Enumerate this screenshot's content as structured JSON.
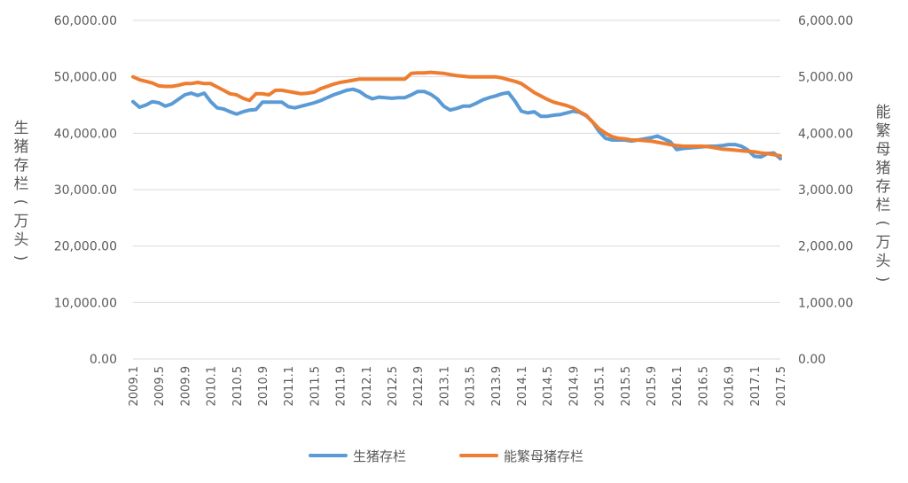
{
  "chart_data": {
    "type": "line",
    "title": "",
    "grid": true,
    "legend_position": "bottom",
    "x_labels": [
      "2009.1",
      "2009.5",
      "2009.9",
      "2010.1",
      "2010.5",
      "2010.9",
      "2011.1",
      "2011.5",
      "2011.9",
      "2012.1",
      "2012.5",
      "2012.9",
      "2013.1",
      "2013.5",
      "2013.9",
      "2014.1",
      "2014.5",
      "2014.9",
      "2015.1",
      "2015.5",
      "2015.9",
      "2016.1",
      "2016.5",
      "2016.9",
      "2017.1",
      "2017.5"
    ],
    "y_left": {
      "label": "生猪存栏(万头)",
      "range": [
        0,
        60000
      ],
      "ticks": [
        0,
        10000,
        20000,
        30000,
        40000,
        50000,
        60000
      ],
      "tick_labels": [
        "0.00",
        "10,000.00",
        "20,000.00",
        "30,000.00",
        "40,000.00",
        "50,000.00",
        "60,000.00"
      ]
    },
    "y_right": {
      "label": "能繁母猪存栏(万头)",
      "range": [
        0,
        6000
      ],
      "ticks": [
        0,
        1000,
        2000,
        3000,
        4000,
        5000,
        6000
      ],
      "tick_labels": [
        "0.00",
        "1,000.00",
        "2,000.00",
        "3,000.00",
        "4,000.00",
        "5,000.00",
        "6,000.00"
      ]
    },
    "series": [
      {
        "name": "生猪存栏",
        "axis": "left",
        "color": "#5B9BD5",
        "x": [
          "2009.1",
          "2009.2",
          "2009.3",
          "2009.4",
          "2009.5",
          "2009.6",
          "2009.7",
          "2009.8",
          "2009.9",
          "2009.10",
          "2009.11",
          "2009.12",
          "2010.1",
          "2010.2",
          "2010.3",
          "2010.4",
          "2010.5",
          "2010.6",
          "2010.7",
          "2010.8",
          "2010.9",
          "2010.10",
          "2010.11",
          "2010.12",
          "2011.1",
          "2011.2",
          "2011.3",
          "2011.4",
          "2011.5",
          "2011.6",
          "2011.7",
          "2011.8",
          "2011.9",
          "2011.10",
          "2011.11",
          "2011.12",
          "2012.1",
          "2012.2",
          "2012.3",
          "2012.4",
          "2012.5",
          "2012.6",
          "2012.7",
          "2012.8",
          "2012.9",
          "2012.10",
          "2012.11",
          "2012.12",
          "2013.1",
          "2013.2",
          "2013.3",
          "2013.4",
          "2013.5",
          "2013.6",
          "2013.7",
          "2013.8",
          "2013.9",
          "2013.10",
          "2013.11",
          "2013.12",
          "2014.1",
          "2014.2",
          "2014.3",
          "2014.4",
          "2014.5",
          "2014.6",
          "2014.7",
          "2014.8",
          "2014.9",
          "2014.10",
          "2014.11",
          "2014.12",
          "2015.1",
          "2015.2",
          "2015.3",
          "2015.4",
          "2015.5",
          "2015.6",
          "2015.7",
          "2015.8",
          "2015.9",
          "2015.10",
          "2015.11",
          "2015.12",
          "2016.1",
          "2016.2",
          "2016.3",
          "2016.4",
          "2016.5",
          "2016.6",
          "2016.7",
          "2016.8",
          "2016.9",
          "2016.10",
          "2016.11",
          "2016.12",
          "2017.1",
          "2017.2",
          "2017.3",
          "2017.4",
          "2017.5"
        ],
        "values": [
          45600,
          44600,
          45000,
          45600,
          45400,
          44800,
          45200,
          46000,
          46800,
          47100,
          46700,
          47100,
          45600,
          44500,
          44300,
          43800,
          43400,
          43800,
          44100,
          44200,
          45500,
          45500,
          45500,
          45500,
          44700,
          44500,
          44800,
          45100,
          45400,
          45800,
          46300,
          46800,
          47200,
          47600,
          47800,
          47400,
          46600,
          46100,
          46400,
          46300,
          46200,
          46300,
          46300,
          46800,
          47400,
          47400,
          46900,
          46100,
          44800,
          44100,
          44400,
          44800,
          44800,
          45300,
          45900,
          46300,
          46600,
          47000,
          47200,
          45700,
          43900,
          43600,
          43800,
          43000,
          43000,
          43200,
          43300,
          43600,
          43900,
          43700,
          43100,
          42000,
          40300,
          39100,
          38800,
          38800,
          38800,
          38600,
          38800,
          39000,
          39200,
          39500,
          39000,
          38500,
          37100,
          37300,
          37400,
          37500,
          37600,
          37700,
          37700,
          37800,
          38000,
          38000,
          37700,
          37000,
          35900,
          35800,
          36400,
          36500,
          35500
        ]
      },
      {
        "name": "能繁母猪存栏",
        "axis": "right",
        "color": "#ED7D31",
        "x": [
          "2009.1",
          "2009.2",
          "2009.3",
          "2009.4",
          "2009.5",
          "2009.6",
          "2009.7",
          "2009.8",
          "2009.9",
          "2009.10",
          "2009.11",
          "2009.12",
          "2010.1",
          "2010.2",
          "2010.3",
          "2010.4",
          "2010.5",
          "2010.6",
          "2010.7",
          "2010.8",
          "2010.9",
          "2010.10",
          "2010.11",
          "2010.12",
          "2011.1",
          "2011.2",
          "2011.3",
          "2011.4",
          "2011.5",
          "2011.6",
          "2011.7",
          "2011.8",
          "2011.9",
          "2011.10",
          "2011.11",
          "2011.12",
          "2012.1",
          "2012.2",
          "2012.3",
          "2012.4",
          "2012.5",
          "2012.6",
          "2012.7",
          "2012.8",
          "2012.9",
          "2012.10",
          "2012.11",
          "2012.12",
          "2013.1",
          "2013.2",
          "2013.3",
          "2013.4",
          "2013.5",
          "2013.6",
          "2013.7",
          "2013.8",
          "2013.9",
          "2013.10",
          "2013.11",
          "2013.12",
          "2014.1",
          "2014.2",
          "2014.3",
          "2014.4",
          "2014.5",
          "2014.6",
          "2014.7",
          "2014.8",
          "2014.9",
          "2014.10",
          "2014.11",
          "2014.12",
          "2015.1",
          "2015.2",
          "2015.3",
          "2015.4",
          "2015.5",
          "2015.6",
          "2015.7",
          "2015.8",
          "2015.9",
          "2015.10",
          "2015.11",
          "2015.12",
          "2016.1",
          "2016.2",
          "2016.3",
          "2016.4",
          "2016.5",
          "2016.6",
          "2016.7",
          "2016.8",
          "2016.9",
          "2016.10",
          "2016.11",
          "2016.12",
          "2017.1",
          "2017.2",
          "2017.3",
          "2017.4",
          "2017.5"
        ],
        "values": [
          5000,
          4950,
          4920,
          4890,
          4840,
          4830,
          4830,
          4850,
          4880,
          4880,
          4900,
          4880,
          4880,
          4820,
          4760,
          4700,
          4680,
          4620,
          4580,
          4700,
          4700,
          4680,
          4760,
          4760,
          4740,
          4720,
          4700,
          4710,
          4730,
          4790,
          4830,
          4870,
          4900,
          4920,
          4940,
          4960,
          4960,
          4960,
          4960,
          4960,
          4960,
          4960,
          4960,
          5060,
          5070,
          5070,
          5080,
          5070,
          5060,
          5040,
          5020,
          5010,
          5000,
          5000,
          5000,
          5000,
          5000,
          4980,
          4950,
          4920,
          4880,
          4800,
          4720,
          4660,
          4600,
          4550,
          4520,
          4490,
          4450,
          4380,
          4320,
          4200,
          4080,
          4000,
          3940,
          3910,
          3900,
          3880,
          3880,
          3870,
          3860,
          3840,
          3820,
          3800,
          3780,
          3770,
          3770,
          3770,
          3770,
          3760,
          3740,
          3720,
          3710,
          3700,
          3690,
          3680,
          3670,
          3650,
          3640,
          3620,
          3600
        ]
      }
    ]
  }
}
